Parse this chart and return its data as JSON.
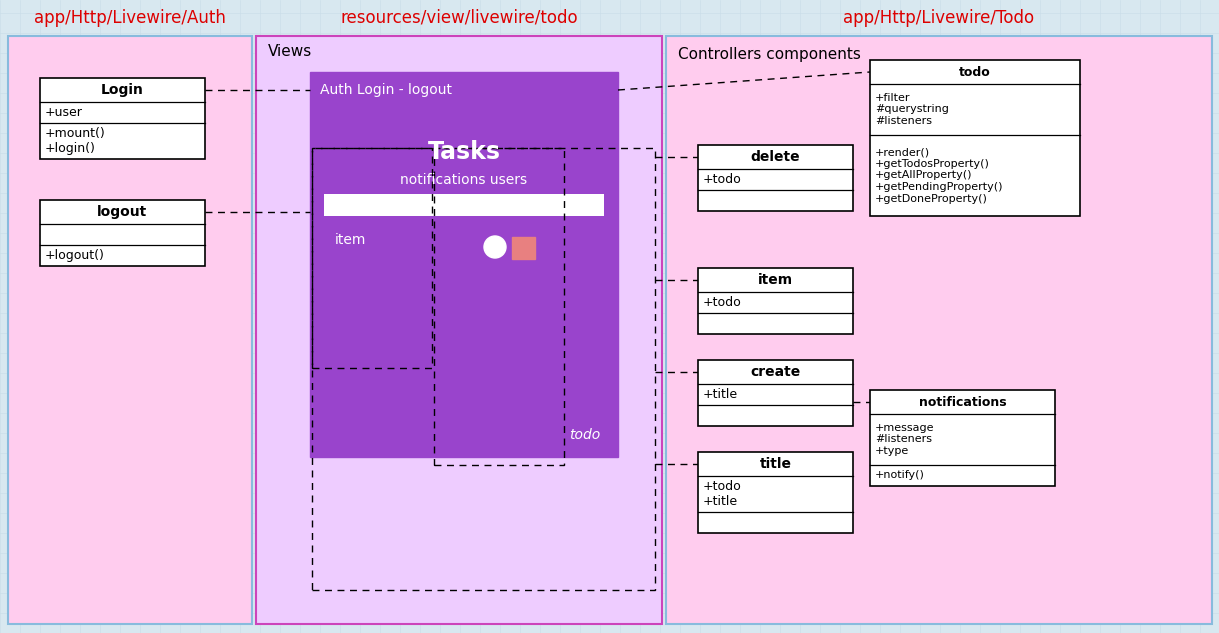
{
  "bg_color": "#d8e8f0",
  "title_color": "#dd0000",
  "section1_title": "app/Http/Livewire/Auth",
  "section2_title": "resources/view/livewire/todo",
  "section3_title": "app/Http/Livewire/Todo",
  "section1_bg": "#ffccee",
  "section1_edge": "#88bbdd",
  "section2_bg": "#eeccff",
  "section2_edge": "#cc44bb",
  "section3_bg": "#ffccee",
  "section3_edge": "#88bbdd",
  "purple_bg": "#9944cc",
  "views_label": "Views",
  "controllers_label": "Controllers components",
  "auth_login_label": "Auth Login - logout",
  "tasks_label": "Tasks",
  "notif_users_label": "notifications users",
  "item_label": "item",
  "todo_label": "todo",
  "grid_color": "#c8dde8",
  "login_name": "Login",
  "login_attr": "+user",
  "login_methods": "+mount()\n+login()",
  "logout_name": "logout",
  "logout_methods": "+logout()",
  "todo_cls_name": "todo",
  "todo_cls_attrs": "+filter\n#querystring\n#listeners",
  "todo_cls_methods": "+render()\n+getTodosProperty()\n+getAllProperty()\n+getPendingProperty()\n+getDoneProperty()",
  "delete_name": "delete",
  "delete_attr": "+todo",
  "item_cls_name": "item",
  "item_cls_attr": "+todo",
  "create_name": "create",
  "create_attr": "+title",
  "title_cls_name": "title",
  "title_cls_attrs": "+todo\n+title",
  "notif_name": "notifications",
  "notif_attrs": "+message\n#listeners\n+type",
  "notif_methods": "+notify()"
}
